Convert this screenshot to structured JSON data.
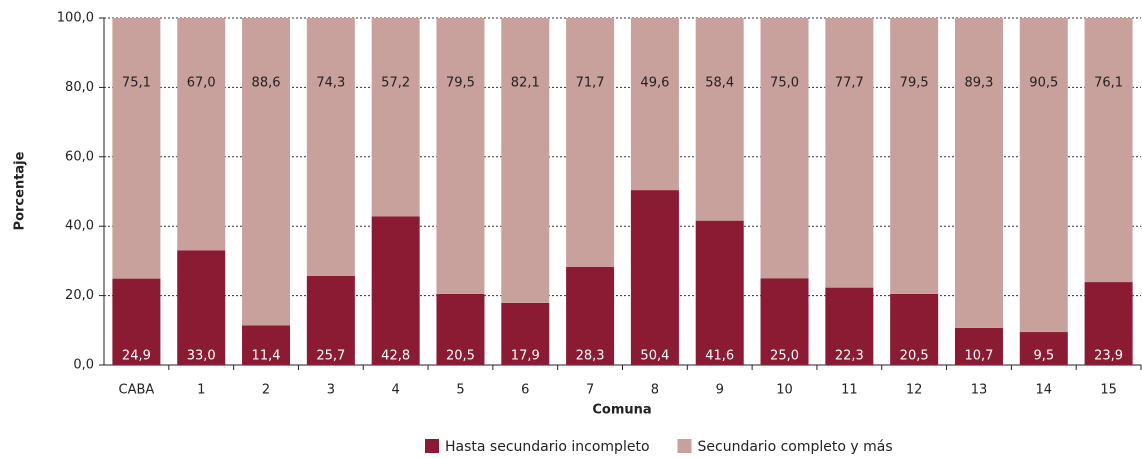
{
  "chart_data": {
    "type": "stacked_bar",
    "x_label": "Comuna",
    "y_label": "Porcentaje",
    "categories": [
      "CABA",
      "1",
      "2",
      "3",
      "4",
      "5",
      "6",
      "7",
      "8",
      "9",
      "10",
      "11",
      "12",
      "13",
      "14",
      "15"
    ],
    "series": [
      {
        "name": "Hasta secundario incompleto",
        "color": "#8b1a33",
        "values": [
          24.9,
          33.0,
          11.4,
          25.7,
          42.8,
          20.5,
          17.9,
          28.3,
          50.4,
          41.6,
          25.0,
          22.3,
          20.5,
          10.7,
          9.5,
          23.9
        ],
        "value_labels": [
          "24,9",
          "33,0",
          "11,4",
          "25,7",
          "42,8",
          "20,5",
          "17,9",
          "28,3",
          "50,4",
          "41,6",
          "25,0",
          "22,3",
          "20,5",
          "10,7",
          "9,5",
          "23,9"
        ]
      },
      {
        "name": "Secundario completo y más",
        "color": "#c9a19c",
        "values": [
          75.1,
          67.0,
          88.6,
          74.3,
          57.2,
          79.5,
          82.1,
          71.7,
          49.6,
          58.4,
          75.0,
          77.7,
          79.5,
          89.3,
          90.5,
          76.1
        ],
        "value_labels": [
          "75,1",
          "67,0",
          "88,6",
          "74,3",
          "57,2",
          "79,5",
          "82,1",
          "71,7",
          "49,6",
          "58,4",
          "75,0",
          "77,7",
          "79,5",
          "89,3",
          "90,5",
          "76,1"
        ]
      }
    ],
    "ylim": [
      0,
      100
    ],
    "yticks": [
      {
        "value": 0,
        "label": "0,0"
      },
      {
        "value": 20,
        "label": "20,0"
      },
      {
        "value": 40,
        "label": "40,0"
      },
      {
        "value": 60,
        "label": "60,0"
      },
      {
        "value": 80,
        "label": "80,0"
      },
      {
        "value": 100,
        "label": "100,0"
      }
    ],
    "grid": true,
    "legend": "bottom"
  }
}
